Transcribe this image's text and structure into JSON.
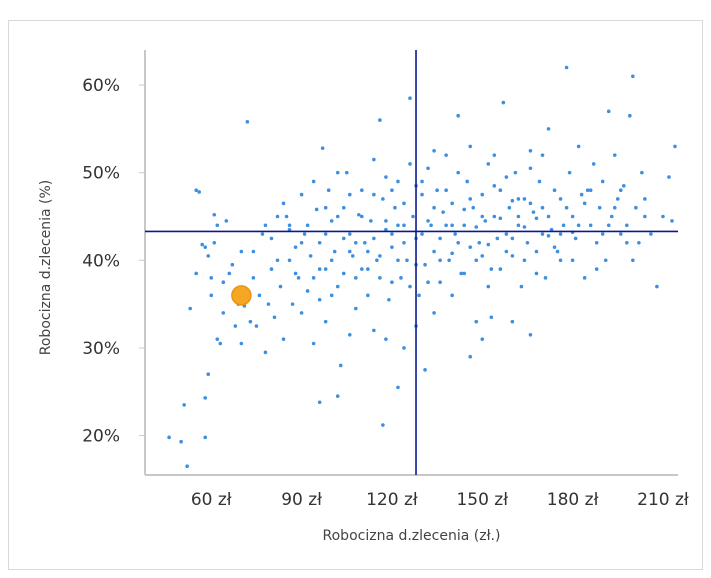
{
  "title": "",
  "chart_data": {
    "type": "scatter",
    "xlabel": "Robocizna d.zlecenia (zł.)",
    "ylabel": "Robocizna d.zlecenia (%)",
    "xlim": [
      38,
      215
    ],
    "ylim": [
      15.5,
      64
    ],
    "x_ticks": [
      60,
      90,
      120,
      150,
      180,
      210
    ],
    "x_tick_labels": [
      "60 zł",
      "90 zł",
      "120 zł",
      "150 zł",
      "180 zł",
      "210 zł"
    ],
    "y_ticks": [
      20,
      30,
      40,
      50,
      60
    ],
    "y_tick_labels": [
      "20%",
      "30%",
      "40%",
      "50%",
      "60%"
    ],
    "reference_lines": {
      "x": 128,
      "y": 43.3
    },
    "highlight_point": {
      "x": 70,
      "y": 36
    },
    "series": [
      {
        "points": [
          [
            46,
            19.8
          ],
          [
            50,
            19.3
          ],
          [
            52,
            16.5
          ],
          [
            51,
            23.5
          ],
          [
            58,
            19.8
          ],
          [
            53,
            34.5
          ],
          [
            55,
            38.5
          ],
          [
            55,
            48
          ],
          [
            56,
            47.8
          ],
          [
            57,
            41.8
          ],
          [
            58,
            41.5
          ],
          [
            58,
            24.3
          ],
          [
            59,
            27
          ],
          [
            59,
            40.5
          ],
          [
            60,
            36
          ],
          [
            60,
            38
          ],
          [
            61,
            45.2
          ],
          [
            61,
            42
          ],
          [
            62,
            44
          ],
          [
            62,
            31
          ],
          [
            63,
            30.5
          ],
          [
            64,
            34
          ],
          [
            64,
            37.5
          ],
          [
            65,
            44.5
          ],
          [
            66,
            38.5
          ],
          [
            67,
            39.5
          ],
          [
            68,
            32.5
          ],
          [
            69,
            35
          ],
          [
            70,
            41
          ],
          [
            70,
            30.5
          ],
          [
            71,
            34.8
          ],
          [
            72,
            36.5
          ],
          [
            72,
            55.8
          ],
          [
            73,
            33
          ],
          [
            74,
            41
          ],
          [
            74,
            38
          ],
          [
            75,
            32.5
          ],
          [
            76,
            36
          ],
          [
            77,
            43
          ],
          [
            78,
            29.5
          ],
          [
            79,
            35
          ],
          [
            80,
            39
          ],
          [
            80,
            42.5
          ],
          [
            81,
            33.5
          ],
          [
            82,
            40
          ],
          [
            83,
            37
          ],
          [
            84,
            46.5
          ],
          [
            85,
            45
          ],
          [
            86,
            44
          ],
          [
            87,
            35
          ],
          [
            88,
            41.5
          ],
          [
            89,
            38
          ],
          [
            90,
            47.5
          ],
          [
            91,
            43
          ],
          [
            92,
            36.5
          ],
          [
            93,
            40.5
          ],
          [
            94,
            30.5
          ],
          [
            95,
            45.8
          ],
          [
            96,
            42
          ],
          [
            97,
            52.8
          ],
          [
            98,
            39
          ],
          [
            99,
            48
          ],
          [
            100,
            44.5
          ],
          [
            101,
            41
          ],
          [
            102,
            37
          ],
          [
            103,
            28
          ],
          [
            104,
            46
          ],
          [
            105,
            50
          ],
          [
            106,
            43
          ],
          [
            107,
            40.5
          ],
          [
            108,
            34.5
          ],
          [
            109,
            45.2
          ],
          [
            110,
            48
          ],
          [
            111,
            42
          ],
          [
            112,
            39
          ],
          [
            113,
            44.5
          ],
          [
            114,
            51.5
          ],
          [
            115,
            40
          ],
          [
            116,
            56
          ],
          [
            117,
            47
          ],
          [
            118,
            43.5
          ],
          [
            119,
            35.5
          ],
          [
            120,
            41.5
          ],
          [
            121,
            46
          ],
          [
            122,
            49
          ],
          [
            123,
            38
          ],
          [
            124,
            44
          ],
          [
            125,
            40
          ],
          [
            126,
            58.5
          ],
          [
            127,
            45
          ],
          [
            128,
            42.5
          ],
          [
            129,
            36
          ],
          [
            130,
            47.5
          ],
          [
            131,
            39.5
          ],
          [
            132,
            50.5
          ],
          [
            133,
            44
          ],
          [
            134,
            41
          ],
          [
            135,
            48
          ],
          [
            136,
            37.5
          ],
          [
            137,
            45.5
          ],
          [
            138,
            52
          ],
          [
            139,
            40
          ],
          [
            140,
            46.5
          ],
          [
            141,
            43
          ],
          [
            142,
            56.5
          ],
          [
            143,
            38.5
          ],
          [
            144,
            44
          ],
          [
            145,
            49
          ],
          [
            146,
            41.5
          ],
          [
            147,
            46
          ],
          [
            148,
            33
          ],
          [
            149,
            42
          ],
          [
            150,
            47.5
          ],
          [
            151,
            44.5
          ],
          [
            152,
            51
          ],
          [
            153,
            39
          ],
          [
            154,
            45
          ],
          [
            155,
            42.5
          ],
          [
            156,
            48
          ],
          [
            157,
            58
          ],
          [
            158,
            43
          ],
          [
            159,
            46
          ],
          [
            160,
            40.5
          ],
          [
            161,
            50
          ],
          [
            162,
            44
          ],
          [
            163,
            37
          ],
          [
            164,
            47
          ],
          [
            165,
            42
          ],
          [
            166,
            52.5
          ],
          [
            167,
            45.5
          ],
          [
            168,
            41
          ],
          [
            169,
            49
          ],
          [
            170,
            46
          ],
          [
            171,
            38
          ],
          [
            172,
            55
          ],
          [
            173,
            43.5
          ],
          [
            174,
            48
          ],
          [
            175,
            41
          ],
          [
            176,
            47
          ],
          [
            177,
            44
          ],
          [
            178,
            62
          ],
          [
            179,
            50
          ],
          [
            180,
            45
          ],
          [
            181,
            42.5
          ],
          [
            182,
            53
          ],
          [
            183,
            47.5
          ],
          [
            184,
            38
          ],
          [
            185,
            48
          ],
          [
            186,
            44
          ],
          [
            187,
            51
          ],
          [
            188,
            42
          ],
          [
            189,
            46
          ],
          [
            190,
            49
          ],
          [
            191,
            40
          ],
          [
            192,
            57
          ],
          [
            193,
            45
          ],
          [
            194,
            52
          ],
          [
            195,
            47
          ],
          [
            196,
            43
          ],
          [
            197,
            48.5
          ],
          [
            198,
            44
          ],
          [
            199,
            56.5
          ],
          [
            200,
            61
          ],
          [
            201,
            46
          ],
          [
            202,
            42
          ],
          [
            203,
            50
          ],
          [
            204,
            47
          ],
          [
            206,
            43
          ],
          [
            208,
            37
          ],
          [
            210,
            45
          ],
          [
            212,
            49.5
          ],
          [
            214,
            53
          ],
          [
            213,
            44.5
          ],
          [
            120,
            48
          ],
          [
            118,
            31
          ],
          [
            122,
            25.5
          ],
          [
            131,
            27.5
          ],
          [
            117,
            21.2
          ],
          [
            96,
            23.8
          ],
          [
            102,
            24.5
          ],
          [
            166,
            31.5
          ],
          [
            160,
            33
          ],
          [
            153,
            33.5
          ],
          [
            146,
            29
          ],
          [
            150,
            31
          ],
          [
            140,
            36
          ],
          [
            134,
            34
          ],
          [
            128,
            32.5
          ],
          [
            124,
            30
          ],
          [
            114,
            32
          ],
          [
            106,
            31.5
          ],
          [
            98,
            33
          ],
          [
            90,
            34
          ],
          [
            84,
            31
          ],
          [
            96,
            39
          ],
          [
            100,
            40
          ],
          [
            104,
            38.5
          ],
          [
            108,
            42
          ],
          [
            112,
            41
          ],
          [
            116,
            38
          ],
          [
            120,
            43
          ],
          [
            124,
            46.5
          ],
          [
            128,
            48.5
          ],
          [
            132,
            44.5
          ],
          [
            136,
            42.5
          ],
          [
            140,
            40.8
          ],
          [
            144,
            45.8
          ],
          [
            148,
            43.8
          ],
          [
            152,
            41.8
          ],
          [
            156,
            44.8
          ],
          [
            160,
            46.8
          ],
          [
            164,
            43.8
          ],
          [
            168,
            44.8
          ],
          [
            172,
            42.8
          ],
          [
            176,
            40
          ],
          [
            180,
            43.2
          ],
          [
            184,
            46.5
          ],
          [
            188,
            39
          ],
          [
            192,
            44
          ],
          [
            196,
            48
          ],
          [
            200,
            40
          ],
          [
            204,
            45
          ],
          [
            94,
            49
          ],
          [
            98,
            46
          ],
          [
            102,
            50
          ],
          [
            106,
            47.5
          ],
          [
            110,
            45
          ],
          [
            114,
            42.5
          ],
          [
            118,
            49.5
          ],
          [
            122,
            44
          ],
          [
            126,
            51
          ],
          [
            130,
            49
          ],
          [
            134,
            52.5
          ],
          [
            138,
            48
          ],
          [
            142,
            50
          ],
          [
            146,
            53
          ],
          [
            150,
            45
          ],
          [
            154,
            52
          ],
          [
            158,
            49.5
          ],
          [
            162,
            47
          ],
          [
            166,
            50.5
          ],
          [
            170,
            52
          ],
          [
            86,
            43.5
          ],
          [
            88,
            38.5
          ],
          [
            92,
            44
          ],
          [
            96,
            35.5
          ],
          [
            100,
            36
          ],
          [
            104,
            42.5
          ],
          [
            108,
            38
          ],
          [
            112,
            36
          ],
          [
            116,
            40.5
          ],
          [
            120,
            37.5
          ],
          [
            124,
            42
          ],
          [
            128,
            39.5
          ],
          [
            132,
            37.5
          ],
          [
            136,
            40
          ],
          [
            140,
            44
          ],
          [
            144,
            38.5
          ],
          [
            148,
            40
          ],
          [
            152,
            37
          ],
          [
            156,
            39
          ],
          [
            160,
            42.5
          ],
          [
            164,
            40
          ],
          [
            168,
            38.5
          ],
          [
            172,
            45
          ],
          [
            176,
            43
          ],
          [
            180,
            40
          ],
          [
            78,
            44
          ],
          [
            82,
            45
          ],
          [
            86,
            40
          ],
          [
            90,
            42
          ],
          [
            94,
            38
          ],
          [
            98,
            43
          ],
          [
            102,
            45
          ],
          [
            106,
            41
          ],
          [
            110,
            39
          ],
          [
            114,
            47.5
          ],
          [
            118,
            44.5
          ],
          [
            122,
            40
          ],
          [
            126,
            37
          ],
          [
            130,
            43
          ],
          [
            134,
            46
          ],
          [
            138,
            44
          ],
          [
            142,
            42
          ],
          [
            146,
            47
          ],
          [
            150,
            40.5
          ],
          [
            154,
            48.5
          ],
          [
            158,
            41
          ],
          [
            162,
            45
          ],
          [
            166,
            46.5
          ],
          [
            170,
            43
          ],
          [
            174,
            41.5
          ],
          [
            178,
            46
          ],
          [
            182,
            44
          ],
          [
            186,
            48
          ],
          [
            190,
            43
          ],
          [
            194,
            46
          ],
          [
            198,
            42
          ]
        ]
      }
    ],
    "colors": {
      "points": "#3d8fe0",
      "highlight": "#f5a623",
      "highlight_stroke": "#e89512",
      "ref_lines": "#0a1a8c",
      "axis": "#c8c8c8"
    }
  }
}
